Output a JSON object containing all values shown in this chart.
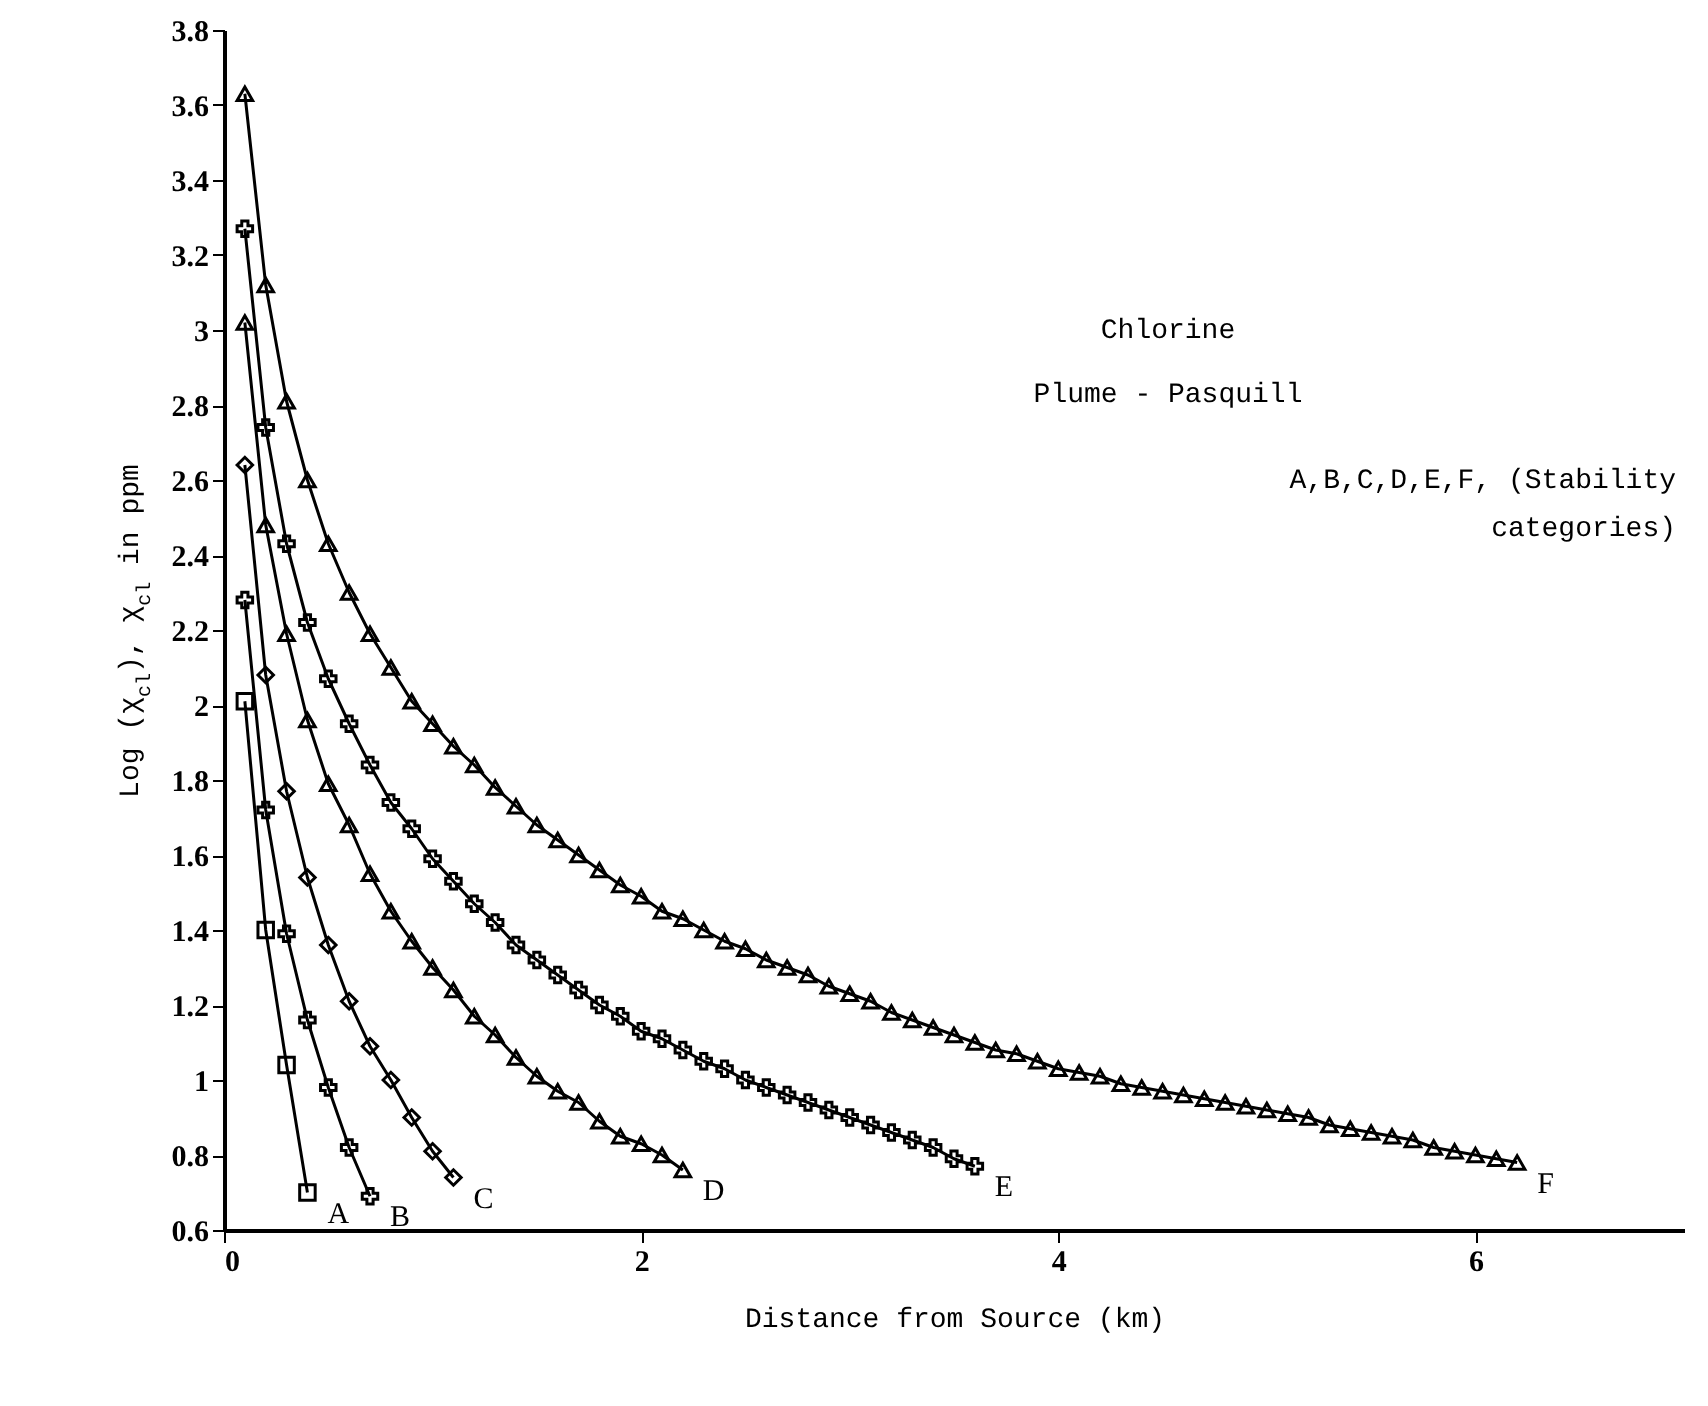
{
  "chart_data": {
    "type": "line",
    "xlabel": "Distance from Source (km)",
    "ylabel": "Log (χ$_{cl}$), χ$_{cl}$ in ppm",
    "annotations": [
      "Chlorine",
      "Plume - Pasquill",
      "A,B,C,D,E,F, (Stability categories)"
    ],
    "xlim": [
      0,
      7
    ],
    "xticks": [
      0,
      2,
      4,
      6
    ],
    "ylim": [
      0.6,
      3.8
    ],
    "yticks": [
      0.6,
      0.8,
      1,
      1.2,
      1.4,
      1.6,
      1.8,
      2,
      2.2,
      2.4,
      2.6,
      2.8,
      3,
      3.2,
      3.4,
      3.6,
      3.8
    ],
    "grid": false,
    "series": [
      {
        "name": "A",
        "color": "#000000",
        "marker": "square",
        "x": [
          0.1,
          0.2,
          0.3,
          0.4
        ],
        "values": [
          2.01,
          1.4,
          1.04,
          0.7
        ]
      },
      {
        "name": "B",
        "color": "#000000",
        "marker": "cross",
        "x": [
          0.1,
          0.2,
          0.3,
          0.4,
          0.5,
          0.6,
          0.7
        ],
        "values": [
          2.28,
          1.72,
          1.39,
          1.16,
          0.98,
          0.82,
          0.69
        ]
      },
      {
        "name": "C",
        "color": "#000000",
        "marker": "diamond",
        "x": [
          0.1,
          0.2,
          0.3,
          0.4,
          0.5,
          0.6,
          0.7,
          0.8,
          0.9,
          1.0,
          1.1
        ],
        "values": [
          2.64,
          2.08,
          1.77,
          1.54,
          1.36,
          1.21,
          1.09,
          1.0,
          0.9,
          0.81,
          0.74
        ]
      },
      {
        "name": "D",
        "color": "#000000",
        "marker": "triangle",
        "x": [
          0.1,
          0.2,
          0.3,
          0.4,
          0.5,
          0.6,
          0.7,
          0.8,
          0.9,
          1.0,
          1.1,
          1.2,
          1.3,
          1.4,
          1.5,
          1.6,
          1.7,
          1.8,
          1.9,
          2.0,
          2.1,
          2.2
        ],
        "values": [
          3.02,
          2.48,
          2.19,
          1.96,
          1.79,
          1.68,
          1.55,
          1.45,
          1.37,
          1.3,
          1.24,
          1.17,
          1.12,
          1.06,
          1.01,
          0.97,
          0.94,
          0.89,
          0.85,
          0.83,
          0.8,
          0.76
        ]
      },
      {
        "name": "E",
        "color": "#000000",
        "marker": "cross",
        "x": [
          0.1,
          0.2,
          0.3,
          0.4,
          0.5,
          0.6,
          0.7,
          0.8,
          0.9,
          1.0,
          1.1,
          1.2,
          1.3,
          1.4,
          1.5,
          1.6,
          1.7,
          1.8,
          1.9,
          2.0,
          2.1,
          2.2,
          2.3,
          2.4,
          2.5,
          2.6,
          2.7,
          2.8,
          2.9,
          3.0,
          3.1,
          3.2,
          3.3,
          3.4,
          3.5,
          3.6
        ],
        "values": [
          3.27,
          2.74,
          2.43,
          2.22,
          2.07,
          1.95,
          1.84,
          1.74,
          1.67,
          1.59,
          1.53,
          1.47,
          1.42,
          1.36,
          1.32,
          1.28,
          1.24,
          1.2,
          1.17,
          1.13,
          1.11,
          1.08,
          1.05,
          1.03,
          1.0,
          0.98,
          0.96,
          0.94,
          0.92,
          0.9,
          0.88,
          0.86,
          0.84,
          0.82,
          0.79,
          0.77
        ]
      },
      {
        "name": "F",
        "color": "#000000",
        "marker": "triangle",
        "x": [
          0.1,
          0.2,
          0.3,
          0.4,
          0.5,
          0.6,
          0.7,
          0.8,
          0.9,
          1.0,
          1.1,
          1.2,
          1.3,
          1.4,
          1.5,
          1.6,
          1.7,
          1.8,
          1.9,
          2.0,
          2.1,
          2.2,
          2.3,
          2.4,
          2.5,
          2.6,
          2.7,
          2.8,
          2.9,
          3.0,
          3.1,
          3.2,
          3.3,
          3.4,
          3.5,
          3.6,
          3.7,
          3.8,
          3.9,
          4.0,
          4.1,
          4.2,
          4.3,
          4.4,
          4.5,
          4.6,
          4.7,
          4.8,
          4.9,
          5.0,
          5.1,
          5.2,
          5.3,
          5.4,
          5.5,
          5.6,
          5.7,
          5.8,
          5.9,
          6.0,
          6.1,
          6.2
        ],
        "values": [
          3.63,
          3.12,
          2.81,
          2.6,
          2.43,
          2.3,
          2.19,
          2.1,
          2.01,
          1.95,
          1.89,
          1.84,
          1.78,
          1.73,
          1.68,
          1.64,
          1.6,
          1.56,
          1.52,
          1.49,
          1.45,
          1.43,
          1.4,
          1.37,
          1.35,
          1.32,
          1.3,
          1.28,
          1.25,
          1.23,
          1.21,
          1.18,
          1.16,
          1.14,
          1.12,
          1.1,
          1.08,
          1.07,
          1.05,
          1.03,
          1.02,
          1.01,
          0.99,
          0.98,
          0.97,
          0.96,
          0.95,
          0.94,
          0.93,
          0.92,
          0.91,
          0.9,
          0.88,
          0.87,
          0.86,
          0.85,
          0.84,
          0.82,
          0.81,
          0.8,
          0.79,
          0.78
        ]
      }
    ]
  }
}
